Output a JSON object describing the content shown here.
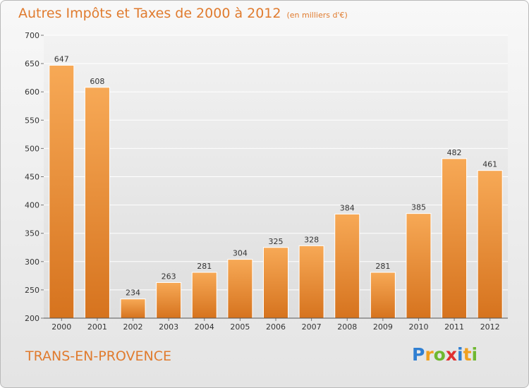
{
  "header": {
    "title": "Autres Impôts et Taxes de 2000 à 2012",
    "subtitle": "(en milliers d'€)"
  },
  "footer": {
    "location": "TRANS-EN-PROVENCE",
    "logo_letters": [
      "P",
      "r",
      "o",
      "x",
      "i",
      "t",
      "i"
    ],
    "logo_colors": [
      "#2f7fd2",
      "#f0a020",
      "#6fb830",
      "#e03030",
      "#2f7fd2",
      "#f0a020",
      "#6fb830"
    ]
  },
  "chart_data": {
    "type": "bar",
    "title": "Autres Impôts et Taxes de 2000 à 2012",
    "xlabel": "",
    "ylabel": "",
    "categories": [
      "2000",
      "2001",
      "2002",
      "2003",
      "2004",
      "2005",
      "2006",
      "2007",
      "2008",
      "2009",
      "2010",
      "2011",
      "2012"
    ],
    "values": [
      647,
      608,
      234,
      263,
      281,
      304,
      325,
      328,
      384,
      281,
      385,
      482,
      461
    ],
    "ylim": [
      200,
      700
    ],
    "yticks": [
      200,
      250,
      300,
      350,
      400,
      450,
      500,
      550,
      600,
      650,
      700
    ],
    "grid": true,
    "bar_color_light": "#f7a956",
    "bar_color_dark": "#d6731e"
  }
}
